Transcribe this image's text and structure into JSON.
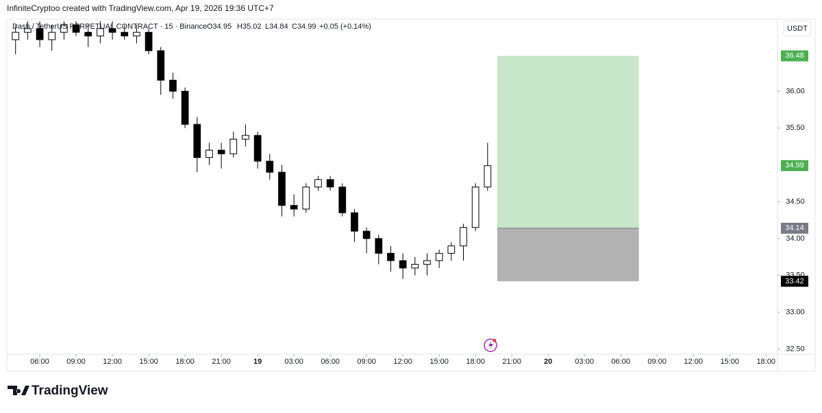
{
  "header": {
    "credit": "InfiniteCryptoo created with TradingView.com, Apr 19, 2026 19:36 UTC+7"
  },
  "legend": {
    "symbol": "Dash / TetherUS PERPETUAL CONTRACT · 15 · Binance",
    "open": "O34.95",
    "high": "H35.02",
    "low": "L34.84",
    "close": "C34.99",
    "change": "+0.05 (+0.14%)"
  },
  "currency": "USDT",
  "footer": {
    "brand": "TradingView"
  },
  "chart_data": {
    "type": "candlestick",
    "x": [
      4,
      5,
      6,
      7,
      8,
      9,
      10,
      11,
      12,
      13,
      14,
      15,
      16,
      17,
      18,
      19,
      20,
      21,
      22,
      23,
      24,
      25,
      26,
      27,
      28,
      29,
      30,
      31,
      32,
      33,
      34,
      35,
      36,
      37,
      38,
      39,
      40,
      41,
      42,
      43
    ],
    "open": [
      36.7,
      36.8,
      36.85,
      36.7,
      36.8,
      36.9,
      36.8,
      36.75,
      36.85,
      36.8,
      36.75,
      36.8,
      36.55,
      36.15,
      36.0,
      35.55,
      35.1,
      35.2,
      35.15,
      35.35,
      35.4,
      35.05,
      34.9,
      34.45,
      34.4,
      34.7,
      34.8,
      34.7,
      34.35,
      34.1,
      34.0,
      33.8,
      33.7,
      33.6,
      33.65,
      33.7,
      33.8,
      33.9,
      34.15,
      34.7
    ],
    "high": [
      36.9,
      36.95,
      36.95,
      36.9,
      36.95,
      36.95,
      36.9,
      36.95,
      36.95,
      36.9,
      36.9,
      36.85,
      36.6,
      36.25,
      36.05,
      35.65,
      35.3,
      35.3,
      35.45,
      35.55,
      35.45,
      35.15,
      35.0,
      34.6,
      34.75,
      34.85,
      34.85,
      34.75,
      34.4,
      34.15,
      34.05,
      33.9,
      33.8,
      33.75,
      33.8,
      33.85,
      33.95,
      34.2,
      34.75,
      35.3
    ],
    "low": [
      36.5,
      36.7,
      36.6,
      36.55,
      36.7,
      36.75,
      36.6,
      36.65,
      36.7,
      36.7,
      36.65,
      36.5,
      35.95,
      35.9,
      35.5,
      34.9,
      35.0,
      34.95,
      35.1,
      35.25,
      34.95,
      34.8,
      34.3,
      34.3,
      34.35,
      34.65,
      34.65,
      34.3,
      33.95,
      33.8,
      33.65,
      33.55,
      33.45,
      33.5,
      33.5,
      33.6,
      33.7,
      33.7,
      34.1,
      34.65
    ],
    "close": [
      36.8,
      36.85,
      36.7,
      36.8,
      36.9,
      36.8,
      36.75,
      36.85,
      36.8,
      36.75,
      36.8,
      36.55,
      36.15,
      36.0,
      35.55,
      35.1,
      35.2,
      35.15,
      35.35,
      35.4,
      35.05,
      34.9,
      34.45,
      34.4,
      34.7,
      34.8,
      34.7,
      34.35,
      34.1,
      34.0,
      33.8,
      33.7,
      33.6,
      33.65,
      33.7,
      33.8,
      33.9,
      34.15,
      34.7,
      34.99
    ],
    "xlim": [
      3.28,
      66.95
    ],
    "xticks": [
      {
        "value": 6,
        "label": "06:00"
      },
      {
        "value": 9,
        "label": "09:00"
      },
      {
        "value": 12,
        "label": "12:00"
      },
      {
        "value": 15,
        "label": "15:00"
      },
      {
        "value": 18,
        "label": "18:00"
      },
      {
        "value": 21,
        "label": "21:00"
      },
      {
        "value": 24,
        "label": "19"
      },
      {
        "value": 27,
        "label": "03:00"
      },
      {
        "value": 30,
        "label": "06:00"
      },
      {
        "value": 33,
        "label": "09:00"
      },
      {
        "value": 36,
        "label": "12:00"
      },
      {
        "value": 39,
        "label": "15:00"
      },
      {
        "value": 42,
        "label": "18:00"
      },
      {
        "value": 45,
        "label": "21:00"
      },
      {
        "value": 48,
        "label": "20"
      },
      {
        "value": 51,
        "label": "03:00"
      },
      {
        "value": 54,
        "label": "06:00"
      },
      {
        "value": 57,
        "label": "09:00"
      },
      {
        "value": 60,
        "label": "12:00"
      },
      {
        "value": 63,
        "label": "15:00"
      },
      {
        "value": 66,
        "label": "18:00"
      }
    ],
    "ylim": [
      32.43,
      36.96
    ],
    "yticks": [
      {
        "value": 32.5,
        "label": "32.50"
      },
      {
        "value": 33,
        "label": "33.00"
      },
      {
        "value": 33.5,
        "label": "33.50"
      },
      {
        "value": 34,
        "label": "34.00"
      },
      {
        "value": 34.5,
        "label": "34.50"
      },
      {
        "value": 35.5,
        "label": "35.50"
      },
      {
        "value": 36,
        "label": "36.00"
      }
    ],
    "position": {
      "x_range": [
        43.8,
        55.5
      ],
      "target": 36.48,
      "entry": 34.14,
      "stop": 33.42,
      "profit_color": "#c8e6c9",
      "loss_color": "#b2b2b2"
    },
    "up_color": "#ffffff",
    "down_color": "#000000"
  }
}
